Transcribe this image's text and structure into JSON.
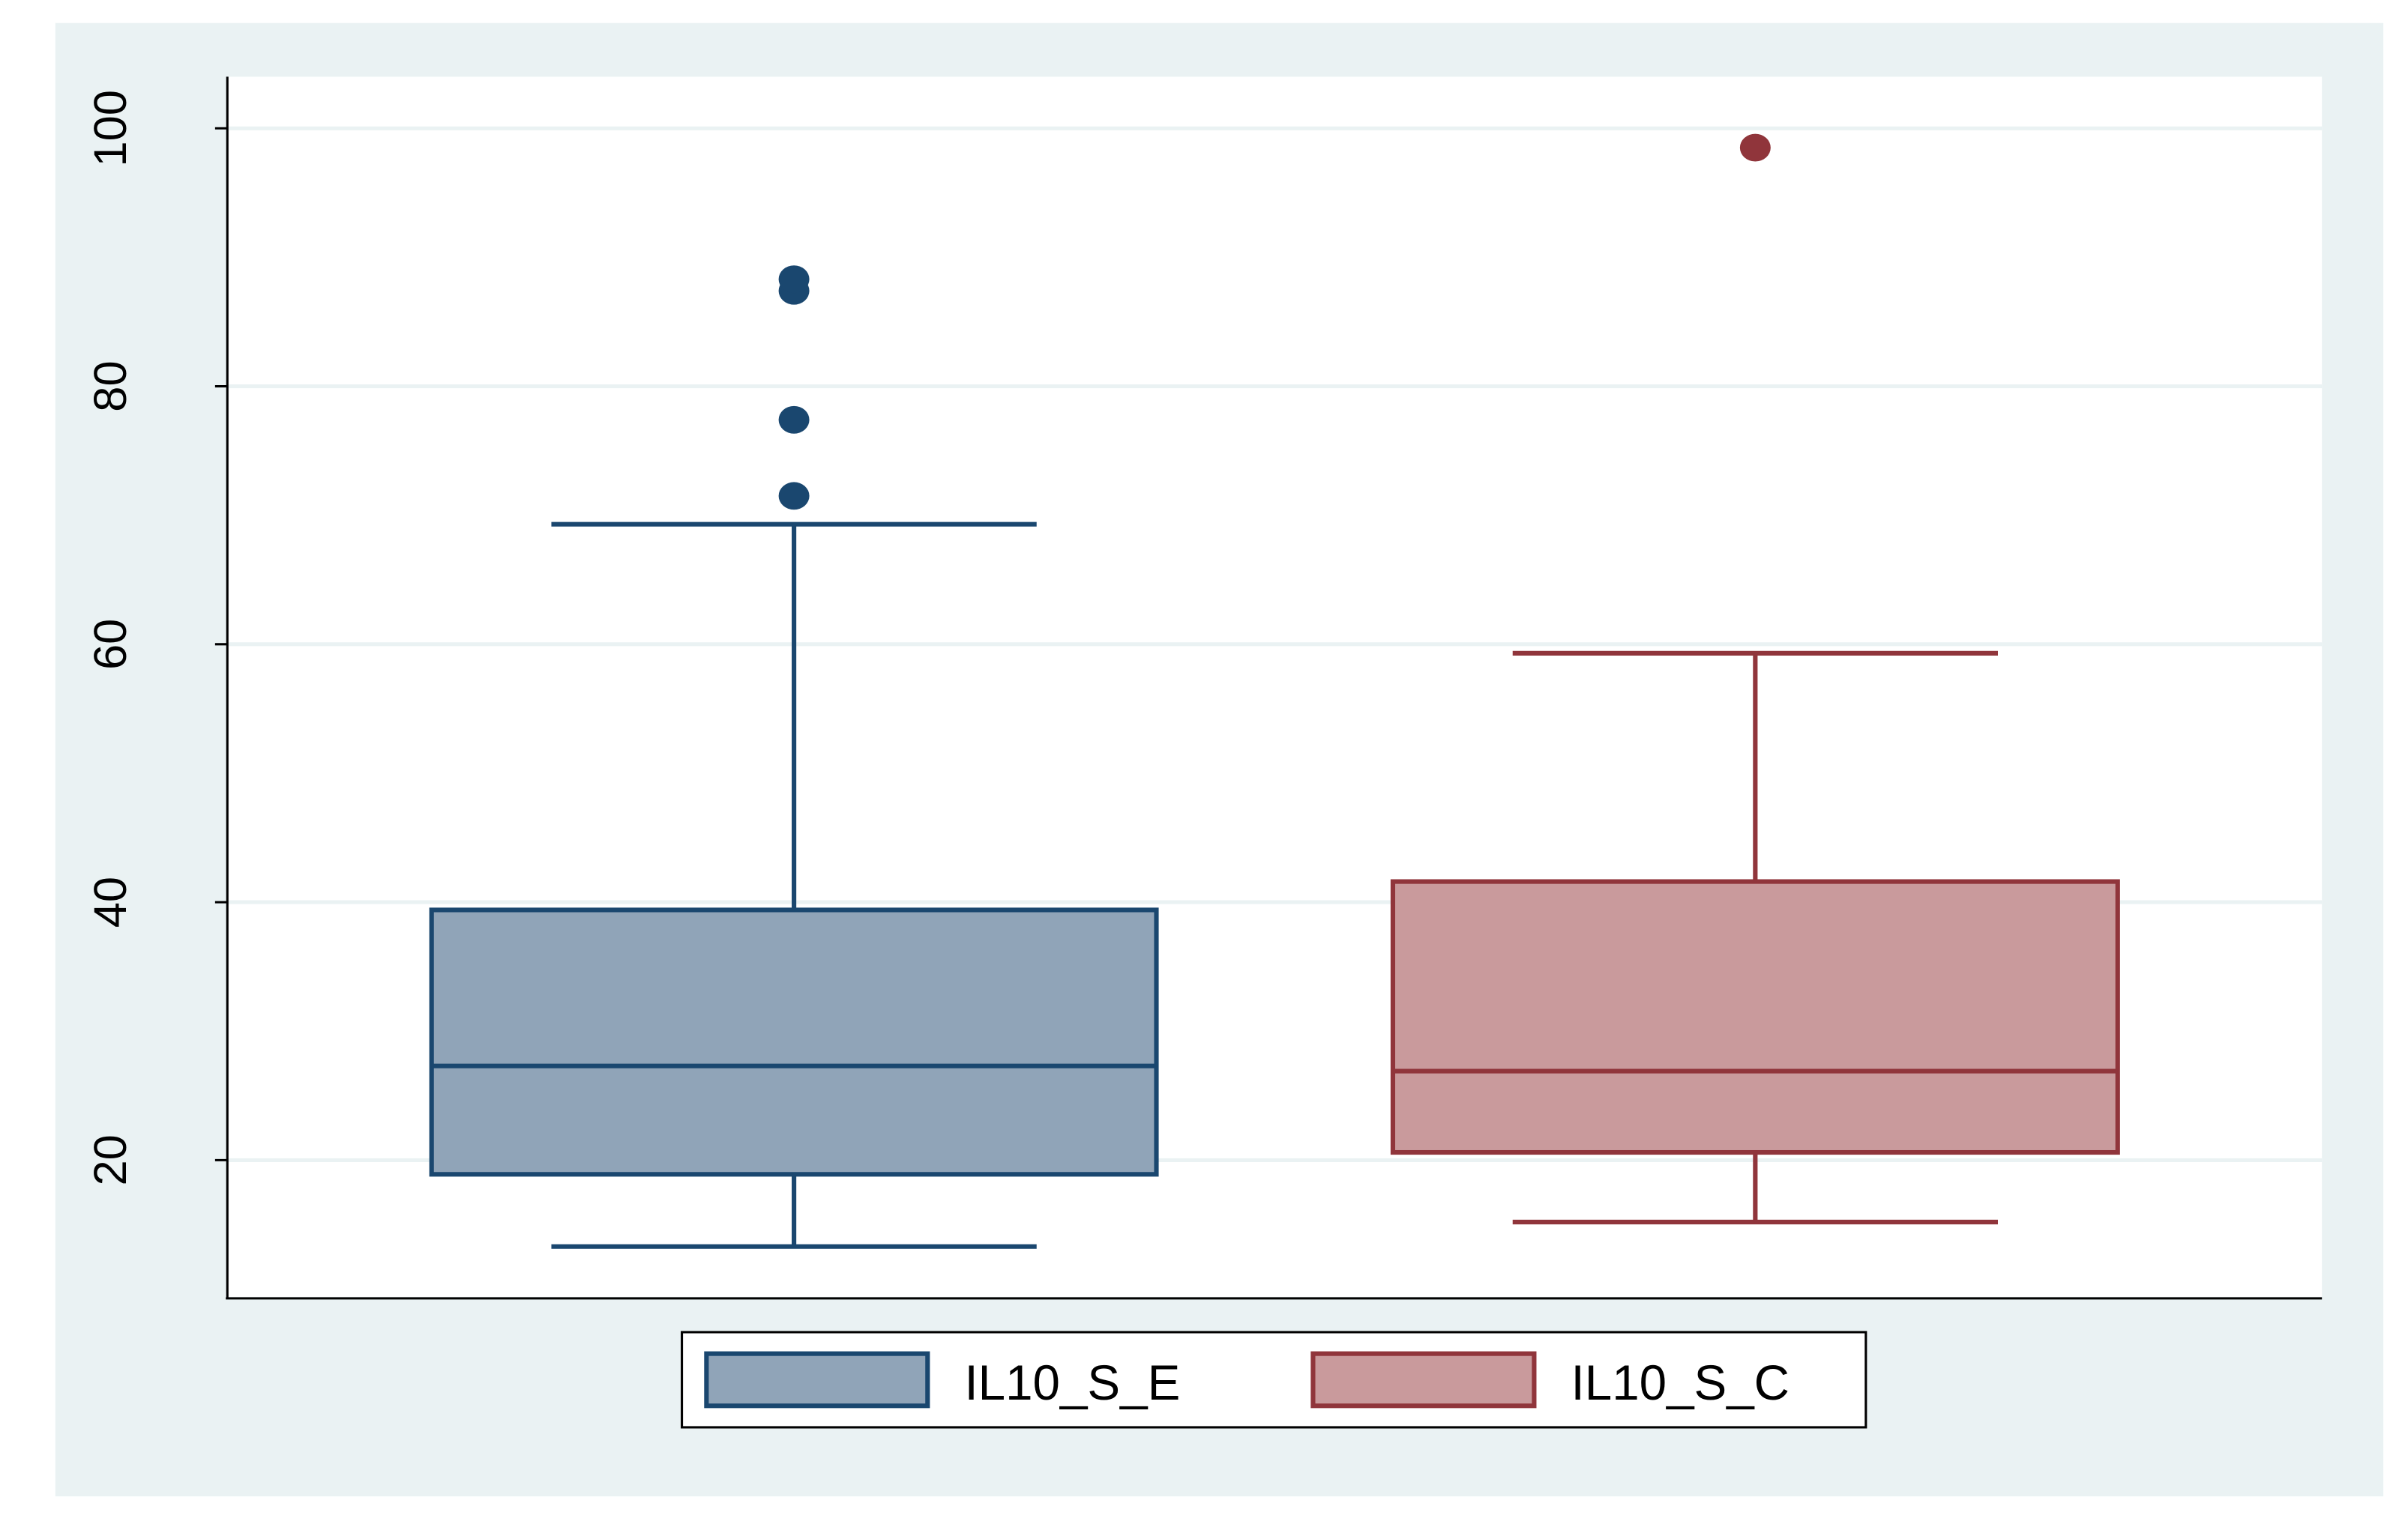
{
  "chart_data": {
    "type": "box",
    "ylim": [
      9.4,
      104
    ],
    "yticks": [
      20,
      40,
      60,
      80,
      100
    ],
    "grid": true,
    "legend": "bottom",
    "series": [
      {
        "name": "IL10_S_E",
        "color": "#1a476f",
        "fill": "#90a4b8",
        "values": {
          "min": 13.3,
          "q1": 18.9,
          "median": 27.3,
          "q3": 39.4,
          "max": 69.3,
          "outliers": [
            71.5,
            77.4,
            87.4,
            88.3
          ]
        }
      },
      {
        "name": "IL10_S_C",
        "color": "#90353b",
        "fill": "#c99a9c",
        "values": {
          "min": 15.2,
          "q1": 20.6,
          "median": 26.9,
          "q3": 41.6,
          "max": 59.3,
          "outliers": [
            98.5
          ]
        }
      }
    ]
  }
}
